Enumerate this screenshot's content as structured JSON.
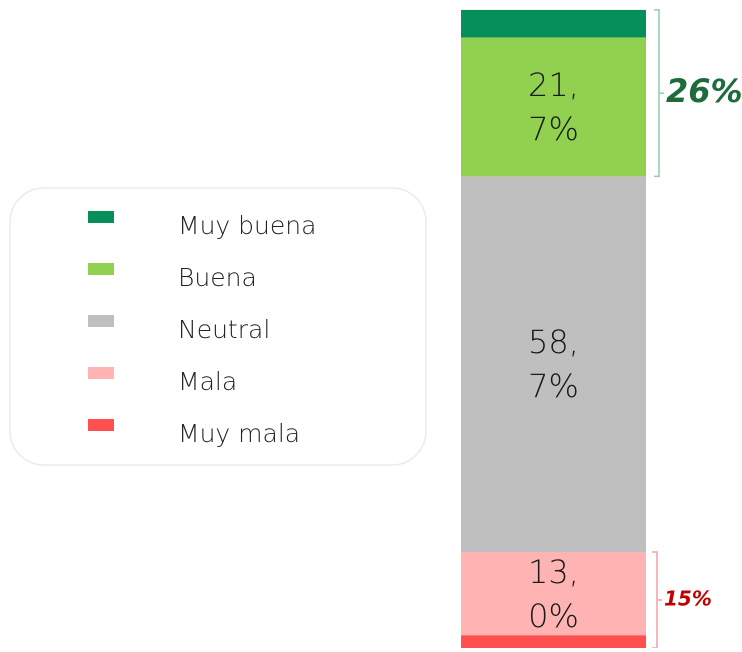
{
  "chart_data": {
    "type": "stacked_bar",
    "categories": [
      null
    ],
    "series": [
      {
        "name": "Muy buena",
        "color": "#068f5b",
        "values": [
          4.3
        ],
        "value_labels": [
          null
        ]
      },
      {
        "name": "Buena",
        "color": "#92d050",
        "values": [
          21.7
        ],
        "value_labels": [
          "21,7%"
        ]
      },
      {
        "name": "Neutral",
        "color": "#bfbfbf",
        "values": [
          58.7
        ],
        "value_labels": [
          "58,7%"
        ]
      },
      {
        "name": "Mala",
        "color": "#ffb3b3",
        "values": [
          13.0
        ],
        "value_labels": [
          "13,0%"
        ]
      },
      {
        "name": "Muy mala",
        "color": "#ff5050",
        "values": [
          2.0
        ],
        "value_labels": [
          null
        ]
      }
    ],
    "ylim": [
      0,
      100
    ],
    "annotations": [
      {
        "text": "26%",
        "value": 26,
        "color": "#1e6b3c",
        "from": "top"
      },
      {
        "text": "15%",
        "value": 15,
        "color": "#c00000",
        "from": "bottom"
      }
    ],
    "legend": "left"
  }
}
